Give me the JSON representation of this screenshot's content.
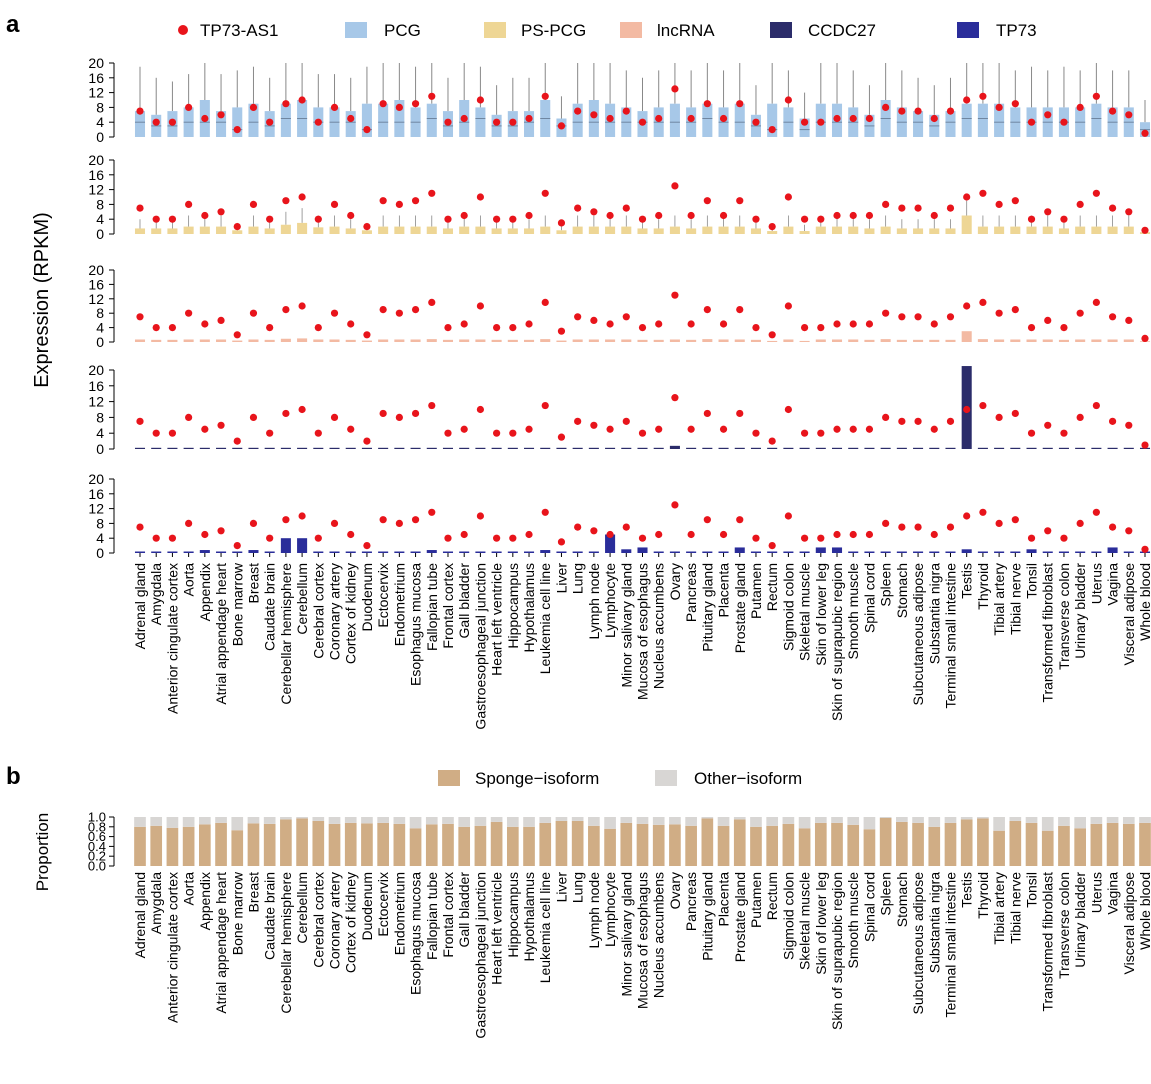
{
  "panel_a_letter": "a",
  "panel_b_letter": "b",
  "tissues": [
    "Adrenal gland",
    "Amygdala",
    "Anterior cingulate cortex",
    "Aorta",
    "Appendix",
    "Atrial appendage heart",
    "Bone marrow",
    "Breast",
    "Caudate brain",
    "Cerebellar hemisphere",
    "Cerebellum",
    "Cerebral cortex",
    "Coronary artery",
    "Cortex of kidney",
    "Duodenum",
    "Ectocervix",
    "Endometrium",
    "Esophagus mucosa",
    "Fallopian tube",
    "Frontal cortex",
    "Gall bladder",
    "Gastroesophageal junction",
    "Heart left ventricle",
    "Hippocampus",
    "Hypothalamus",
    "Leukemia cell line",
    "Liver",
    "Lung",
    "Lymph node",
    "Lymphocyte",
    "Minor salivary gland",
    "Mucosa of esophagus",
    "Nucleus accumbens",
    "Ovary",
    "Pancreas",
    "Pituitary gland",
    "Placenta",
    "Prostate gland",
    "Putamen",
    "Rectum",
    "Sigmoid colon",
    "Skeletal muscle",
    "Skin of lower leg",
    "Skin of suprapubic region",
    "Smooth muscle",
    "Spinal cord",
    "Spleen",
    "Stomach",
    "Subcutaneous adipose",
    "Substantia nigra",
    "Terminal small intestine",
    "Testis",
    "Thyroid",
    "Tibial artery",
    "Tibial nerve",
    "Tonsil",
    "Transformed fibroblast",
    "Transverse colon",
    "Urinary bladder",
    "Uterus",
    "Vagina",
    "Visceral adipose",
    "Whole blood"
  ],
  "colors": {
    "tp73as1": "#e8141b",
    "pcg": "#a7c8e8",
    "ps_pcg": "#eed695",
    "lncrna": "#f3baa3",
    "ccdc27": "#2b2c6a",
    "tp73": "#2a2d9a",
    "sponge": "#d0ad85",
    "other": "#d8d6d4",
    "whisker": "#888888"
  },
  "chart_data": [
    {
      "type": "box",
      "panel": "a",
      "ylabel": "Expression (RPKM)",
      "legend": [
        {
          "name": "TP73-AS1",
          "marker": "dot",
          "color": "#e8141b"
        },
        {
          "name": "PCG",
          "marker": "box",
          "color": "#a7c8e8"
        },
        {
          "name": "PS-PCG",
          "marker": "box",
          "color": "#eed695"
        },
        {
          "name": "lncRNA",
          "marker": "box",
          "color": "#f3baa3"
        },
        {
          "name": "CCDC27",
          "marker": "box",
          "color": "#2b2c6a"
        },
        {
          "name": "TP73",
          "marker": "box",
          "color": "#2a2d9a"
        }
      ],
      "ylim": [
        0,
        20
      ],
      "yticks": [
        "0",
        "4",
        "8",
        "12",
        "16",
        "20"
      ],
      "tp73as1": [
        7,
        4,
        4,
        8,
        5,
        6,
        2,
        8,
        4,
        9,
        10,
        4,
        8,
        5,
        2,
        9,
        8,
        9,
        11,
        4,
        5,
        10,
        4,
        4,
        5,
        11,
        3,
        7,
        6,
        5,
        7,
        4,
        5,
        13,
        5,
        9,
        5,
        9,
        4,
        2,
        10,
        4,
        4,
        5,
        5,
        5,
        8,
        7,
        7,
        5,
        7,
        10,
        11,
        8,
        9,
        4,
        6,
        4,
        8,
        11,
        7,
        6,
        1
      ],
      "pcg": {
        "q1": [
          2,
          1.5,
          1.5,
          2,
          2,
          2,
          1,
          2,
          1.5,
          2.5,
          2.5,
          2,
          2,
          2,
          1,
          2,
          2,
          2,
          2.5,
          1.5,
          2,
          2.5,
          1.5,
          1.5,
          2,
          2.5,
          1.5,
          2,
          2,
          2,
          2,
          2,
          2,
          2,
          2,
          2.5,
          2,
          2,
          1.5,
          1,
          2,
          1,
          2,
          2,
          2,
          1.5,
          2.5,
          2,
          2,
          1.5,
          2,
          2.5,
          2.5,
          2,
          2,
          2,
          2,
          2,
          2,
          2.5,
          2,
          2,
          1
        ],
        "median": [
          4,
          3,
          3,
          4,
          4,
          4,
          2,
          4,
          3,
          5,
          5,
          4,
          4,
          4,
          2,
          4,
          4,
          4,
          5,
          3,
          4,
          5,
          3,
          3,
          4,
          5,
          3,
          4,
          4,
          4,
          4,
          4,
          4,
          4,
          4,
          5,
          4,
          4,
          3,
          2,
          4,
          2,
          4,
          4,
          4,
          3,
          5,
          4,
          4,
          3,
          4,
          5,
          5,
          4,
          4,
          4,
          4,
          4,
          4,
          5,
          4,
          4,
          2
        ],
        "q3": [
          7,
          6,
          7,
          8,
          10,
          7,
          8,
          9,
          7,
          9,
          10,
          8,
          8,
          7,
          9,
          9,
          10,
          8,
          9,
          7,
          10,
          8,
          6,
          7,
          7,
          10,
          5,
          9,
          10,
          9,
          8,
          7,
          8,
          9,
          8,
          9,
          8,
          9,
          6,
          9,
          8,
          5,
          9,
          9,
          8,
          6,
          10,
          8,
          7,
          6,
          7,
          9,
          9,
          9,
          8,
          8,
          8,
          8,
          8,
          9,
          8,
          8,
          4
        ],
        "whisker_hi": [
          19,
          16,
          15,
          17,
          20,
          17,
          18,
          19,
          16,
          20,
          20,
          17,
          17,
          16,
          19,
          20,
          20,
          19,
          20,
          16,
          20,
          19,
          14,
          16,
          16,
          20,
          11,
          20,
          20,
          20,
          18,
          16,
          18,
          20,
          18,
          20,
          18,
          20,
          14,
          20,
          18,
          12,
          20,
          20,
          18,
          14,
          20,
          18,
          16,
          14,
          16,
          20,
          20,
          20,
          18,
          19,
          18,
          19,
          18,
          20,
          18,
          18,
          10
        ]
      },
      "ps_pcg": {
        "q1": [
          0.2,
          0.2,
          0.2,
          0.3,
          0.3,
          0.3,
          0.1,
          0.3,
          0.2,
          0.4,
          0.5,
          0.3,
          0.3,
          0.2,
          0.1,
          0.3,
          0.3,
          0.3,
          0.4,
          0.2,
          0.3,
          0.3,
          0.2,
          0.2,
          0.2,
          0.3,
          0.1,
          0.3,
          0.3,
          0.3,
          0.3,
          0.2,
          0.2,
          0.3,
          0.2,
          0.3,
          0.3,
          0.3,
          0.2,
          0.1,
          0.3,
          0.1,
          0.3,
          0.3,
          0.3,
          0.2,
          0.3,
          0.2,
          0.2,
          0.2,
          0.2,
          1,
          0.3,
          0.3,
          0.3,
          0.3,
          0.3,
          0.2,
          0.3,
          0.3,
          0.3,
          0.3,
          0.1
        ],
        "q3": [
          1.5,
          1.5,
          1.5,
          2,
          2,
          2,
          1,
          2,
          1.5,
          2.5,
          3,
          1.8,
          2,
          1.5,
          1,
          2,
          2,
          2,
          2,
          1.5,
          2,
          2,
          1.5,
          1.5,
          1.5,
          2,
          1,
          2,
          2,
          2,
          2,
          1.5,
          1.5,
          2,
          1.5,
          2,
          2,
          2,
          1.5,
          0.8,
          2,
          0.8,
          2,
          2,
          2,
          1.5,
          2,
          1.5,
          1.5,
          1.5,
          1.5,
          5,
          2,
          2,
          2,
          2,
          2,
          1.5,
          2,
          2,
          2,
          2,
          0.5
        ],
        "whisker_hi": [
          4,
          4,
          4,
          5,
          5,
          5,
          3,
          5,
          4,
          6,
          7,
          5,
          5,
          4,
          3,
          5,
          5,
          5,
          5,
          4,
          5,
          5,
          4,
          4,
          4,
          5,
          3,
          5,
          5,
          5,
          5,
          4,
          4,
          5,
          4,
          5,
          5,
          5,
          4,
          2.5,
          5,
          2.5,
          5,
          5,
          5,
          4,
          5,
          4,
          4,
          4,
          4,
          9,
          5,
          5,
          5,
          5,
          5,
          4,
          5,
          5,
          5,
          5,
          1.5
        ]
      },
      "lncrna": {
        "q1": [
          0.1,
          0.1,
          0.1,
          0.1,
          0.1,
          0.1,
          0.05,
          0.1,
          0.1,
          0.2,
          0.2,
          0.1,
          0.1,
          0.1,
          0.05,
          0.1,
          0.1,
          0.1,
          0.2,
          0.1,
          0.1,
          0.1,
          0.1,
          0.1,
          0.1,
          0.2,
          0.05,
          0.1,
          0.1,
          0.1,
          0.1,
          0.1,
          0.1,
          0.1,
          0.1,
          0.1,
          0.1,
          0.1,
          0.1,
          0.05,
          0.1,
          0.05,
          0.1,
          0.1,
          0.1,
          0.1,
          0.1,
          0.1,
          0.1,
          0.1,
          0.1,
          0.5,
          0.1,
          0.1,
          0.1,
          0.1,
          0.1,
          0.1,
          0.1,
          0.1,
          0.1,
          0.1,
          0.05
        ],
        "q3": [
          0.7,
          0.6,
          0.6,
          0.7,
          0.7,
          0.7,
          0.4,
          0.7,
          0.6,
          0.9,
          1,
          0.7,
          0.7,
          0.6,
          0.4,
          0.7,
          0.7,
          0.7,
          0.8,
          0.6,
          0.7,
          0.7,
          0.6,
          0.6,
          0.6,
          0.8,
          0.4,
          0.7,
          0.7,
          0.7,
          0.7,
          0.6,
          0.6,
          0.7,
          0.6,
          0.8,
          0.7,
          0.7,
          0.6,
          0.3,
          0.7,
          0.3,
          0.7,
          0.7,
          0.7,
          0.6,
          0.8,
          0.6,
          0.6,
          0.6,
          0.6,
          3,
          0.8,
          0.7,
          0.7,
          0.7,
          0.7,
          0.6,
          0.7,
          0.7,
          0.7,
          0.7,
          0.2
        ]
      },
      "ccdc27": [
        0.1,
        0.3,
        0,
        0,
        0,
        0.3,
        0,
        0,
        0.3,
        0,
        0,
        0.3,
        0,
        0,
        0,
        0.3,
        0.3,
        0,
        0,
        0,
        0,
        0,
        0,
        0.3,
        0,
        0.3,
        0,
        0,
        0,
        0,
        0,
        0,
        0,
        0.8,
        0,
        0,
        0,
        0.3,
        0,
        0,
        0,
        0,
        0,
        0,
        0,
        0,
        0,
        0,
        0,
        0,
        0,
        21,
        0.3,
        0,
        0,
        0,
        0,
        0,
        0.3,
        0.3,
        0,
        0,
        0
      ],
      "tp73": [
        0.4,
        0.4,
        0.4,
        0.4,
        0.8,
        0.4,
        0.4,
        0.8,
        0.4,
        4,
        4,
        0.4,
        0.4,
        0.4,
        0.4,
        0.4,
        0.4,
        0.4,
        0.8,
        0.4,
        0.4,
        0.4,
        0.4,
        0.4,
        0.4,
        0.8,
        0.4,
        0.4,
        0.4,
        5,
        1,
        1.5,
        0.4,
        0.4,
        0.4,
        0.4,
        0.4,
        1.5,
        0.4,
        0.4,
        0.4,
        0.4,
        1.5,
        1.5,
        0.4,
        0.4,
        0.4,
        0.4,
        0.4,
        0.4,
        0.4,
        1,
        0.4,
        0.4,
        0.4,
        1,
        0.4,
        0.4,
        0.4,
        0.4,
        1.5,
        0.4,
        0.4
      ]
    },
    {
      "type": "bar",
      "panel": "b",
      "stacked": true,
      "ylabel": "Proportion",
      "ylim": [
        0,
        1
      ],
      "yticks": [
        "0.0",
        "0.2",
        "0.4",
        "0.6",
        "0.8",
        "1.0"
      ],
      "series": [
        {
          "name": "Sponge−isoform",
          "color": "#d0ad85",
          "values": [
            0.8,
            0.82,
            0.78,
            0.8,
            0.85,
            0.88,
            0.73,
            0.87,
            0.86,
            0.95,
            0.97,
            0.92,
            0.86,
            0.88,
            0.87,
            0.88,
            0.86,
            0.77,
            0.85,
            0.86,
            0.8,
            0.82,
            0.9,
            0.8,
            0.8,
            0.88,
            0.92,
            0.92,
            0.82,
            0.76,
            0.88,
            0.86,
            0.84,
            0.85,
            0.82,
            0.97,
            0.82,
            0.95,
            0.8,
            0.82,
            0.86,
            0.77,
            0.88,
            0.88,
            0.84,
            0.75,
            0.98,
            0.9,
            0.88,
            0.8,
            0.88,
            0.95,
            0.97,
            0.72,
            0.92,
            0.88,
            0.72,
            0.82,
            0.77,
            0.86,
            0.88,
            0.86,
            0.88
          ]
        },
        {
          "name": "Other−isoform",
          "color": "#d8d6d4",
          "values": [
            0.2,
            0.18,
            0.22,
            0.2,
            0.15,
            0.12,
            0.27,
            0.13,
            0.14,
            0.05,
            0.03,
            0.08,
            0.14,
            0.12,
            0.13,
            0.12,
            0.14,
            0.23,
            0.15,
            0.14,
            0.2,
            0.18,
            0.1,
            0.2,
            0.2,
            0.12,
            0.08,
            0.08,
            0.18,
            0.24,
            0.12,
            0.14,
            0.16,
            0.15,
            0.18,
            0.03,
            0.18,
            0.05,
            0.2,
            0.18,
            0.14,
            0.23,
            0.12,
            0.12,
            0.16,
            0.25,
            0.02,
            0.1,
            0.12,
            0.2,
            0.12,
            0.05,
            0.03,
            0.28,
            0.08,
            0.12,
            0.28,
            0.18,
            0.23,
            0.14,
            0.12,
            0.14,
            0.12
          ]
        }
      ]
    }
  ]
}
